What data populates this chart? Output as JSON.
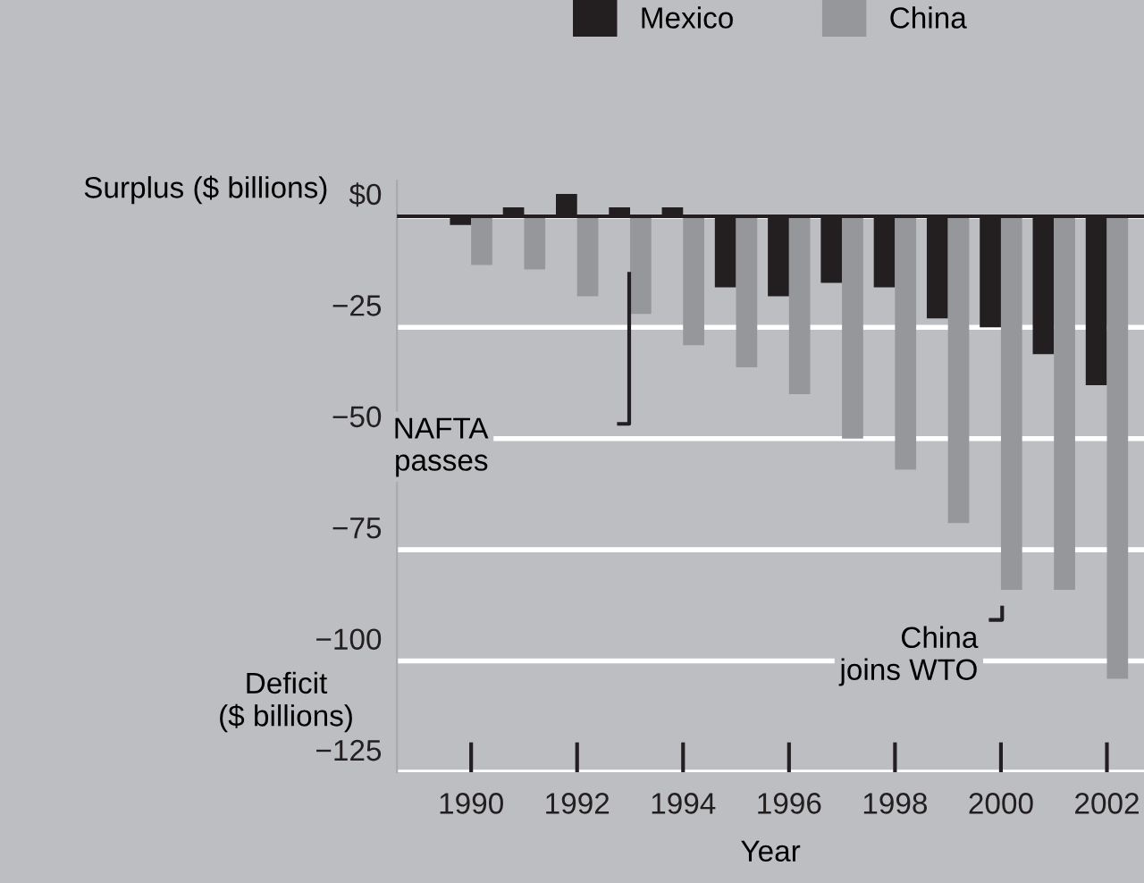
{
  "chart_data": {
    "type": "bar",
    "xlabel": "Year",
    "x": [
      1990,
      1991,
      1992,
      1993,
      1994,
      1995,
      1996,
      1997,
      1998,
      1999,
      2000,
      2001,
      2002
    ],
    "series": [
      {
        "name": "Mexico",
        "color": "#231f20",
        "values": [
          -2,
          2,
          5,
          2,
          2,
          -16,
          -18,
          -15,
          -16,
          -23,
          -25,
          -31,
          -38
        ]
      },
      {
        "name": "China",
        "color": "#96979b",
        "values": [
          -11,
          -12,
          -18,
          -22,
          -29,
          -34,
          -40,
          -50,
          -57,
          -69,
          -84,
          -84,
          -104
        ]
      }
    ],
    "xlim": [
      1988.6,
      2002.7
    ],
    "xticks": [
      1990,
      1992,
      1994,
      1996,
      1998,
      2000,
      2002
    ],
    "ylim": [
      -125,
      8
    ],
    "yticks": [
      {
        "value": 0,
        "label": "$0"
      },
      {
        "value": -25,
        "label": "−25"
      },
      {
        "value": -50,
        "label": "−50"
      },
      {
        "value": -75,
        "label": "−75"
      },
      {
        "value": -100,
        "label": "−100"
      },
      {
        "value": -125,
        "label": "−125"
      }
    ],
    "grid": "y",
    "legend": "top",
    "ref_lines": [
      {
        "axis": "y",
        "value": 0,
        "color": "#231f20"
      }
    ],
    "annotations": [
      "Surplus ($ billions)",
      "Deficit\n($ billions)",
      "NAFTA\npasses",
      "China\njoins WTO"
    ]
  }
}
